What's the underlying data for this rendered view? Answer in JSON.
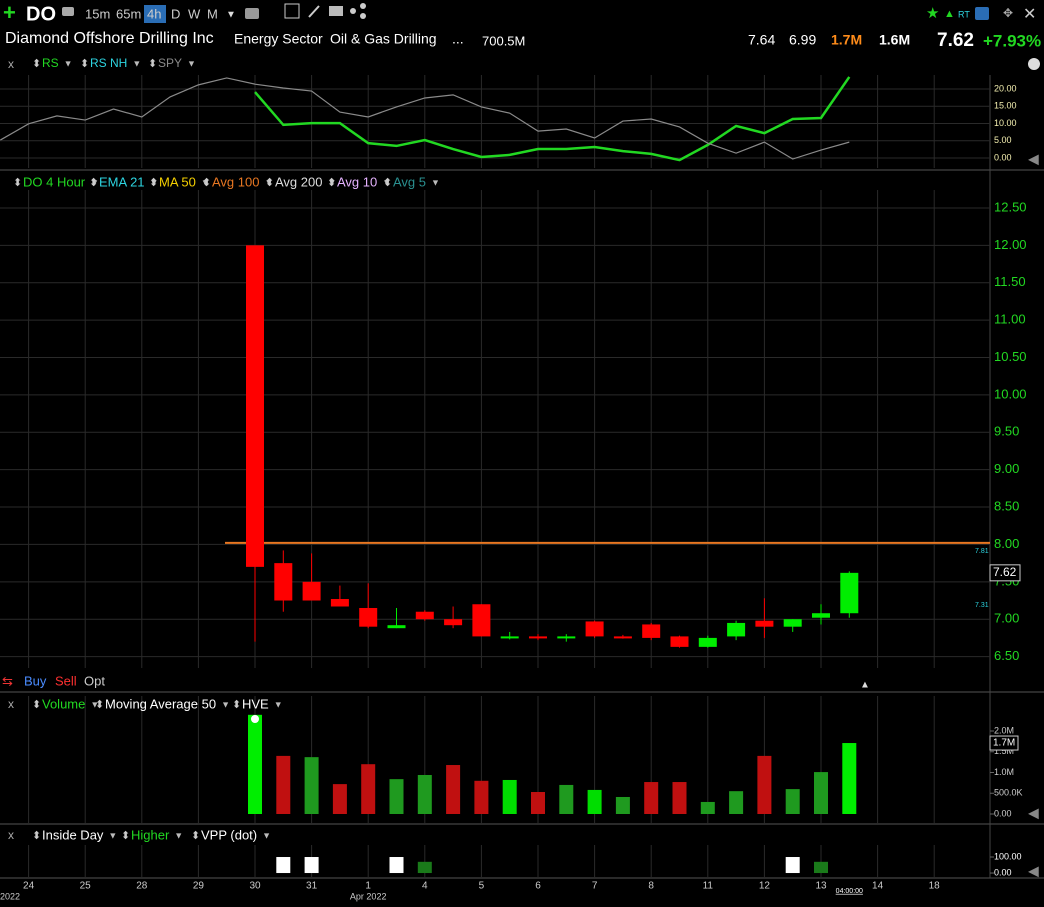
{
  "header": {
    "symbol": "DO",
    "timeframes": [
      "15m",
      "65m",
      "4h",
      "D",
      "W",
      "M"
    ],
    "active_timeframe": "4h",
    "realtime": "RT",
    "company": "Diamond Offshore Drilling Inc",
    "sector": "Energy Sector",
    "industry": "Oil & Gas Drilling",
    "more": "...",
    "market_cap": "700.5M",
    "stats": [
      {
        "text": "7.64",
        "color": "#ffffff"
      },
      {
        "text": "6.99",
        "color": "#ffffff"
      },
      {
        "text": "1.7M",
        "color": "#ff8c1a"
      },
      {
        "text": "1.6M",
        "color": "#ffffff"
      }
    ],
    "last": "7.62",
    "change": "+7.93%"
  },
  "rs_panel": {
    "close": "x",
    "ylim": [
      -2.9,
      24.06
    ],
    "yticks": [
      {
        "value": 20,
        "label": "20.00"
      },
      {
        "value": 15,
        "label": "15.00"
      },
      {
        "value": 10,
        "label": "10.00"
      },
      {
        "value": 5,
        "label": "5.00"
      },
      {
        "value": 0,
        "label": "0.00"
      }
    ],
    "series": [
      {
        "name": "RS",
        "color": "#22d822",
        "values": [
          null,
          null,
          null,
          null,
          null,
          null,
          null,
          null,
          null,
          19.1,
          9.6,
          10.1,
          10.1,
          4.3,
          3.5,
          5.2,
          2.6,
          0.3,
          0.9,
          2.6,
          2.6,
          3.2,
          2.0,
          1.2,
          -0.6,
          3.8,
          9.3,
          7.2,
          11.3,
          11.6,
          23.5
        ]
      },
      {
        "name": "RS NH",
        "color": "#2dd4e0"
      },
      {
        "name": "SPY",
        "color": "#8a8a8a",
        "values": [
          5.2,
          9.9,
          12.2,
          11.0,
          14.2,
          11.9,
          17.7,
          21.2,
          23.2,
          21.4,
          20.3,
          19.4,
          13.3,
          11.9,
          14.8,
          17.4,
          18.3,
          14.8,
          13.0,
          7.8,
          8.4,
          5.8,
          10.7,
          11.3,
          9.0,
          4.3,
          1.4,
          4.6,
          -0.3,
          2.3,
          4.6
        ]
      }
    ]
  },
  "price_panel": {
    "legend": [
      {
        "text": "DO 4 Hour",
        "color": "#22d822"
      },
      {
        "text": "EMA 21",
        "color": "#2dd4e0"
      },
      {
        "text": "MA 50",
        "color": "#f5d000"
      },
      {
        "text": "Avg 100",
        "color": "#e87722"
      },
      {
        "text": "Avg 200",
        "color": "#dddddd"
      },
      {
        "text": "Avg 10",
        "color": "#e6b3ff"
      },
      {
        "text": "Avg 5",
        "color": "#2a9090"
      }
    ],
    "ylim": [
      6.08,
      12.74
    ],
    "yticks": [
      {
        "value": 12.5,
        "label": "12.50"
      },
      {
        "value": 12,
        "label": "12.00"
      },
      {
        "value": 11.5,
        "label": "11.50"
      },
      {
        "value": 11,
        "label": "11.00"
      },
      {
        "value": 10.5,
        "label": "10.50"
      },
      {
        "value": 10,
        "label": "10.00"
      },
      {
        "value": 9.5,
        "label": "9.50"
      },
      {
        "value": 9,
        "label": "9.00"
      },
      {
        "value": 8.5,
        "label": "8.50"
      },
      {
        "value": 8,
        "label": "8.00"
      },
      {
        "value": 7.5,
        "label": "7.50"
      },
      {
        "value": 7,
        "label": "7.00"
      },
      {
        "value": 6.5,
        "label": "6.50"
      }
    ],
    "up_color": "#00ee00",
    "down_color": "#ff0000",
    "candles": [
      {
        "open": 12.0,
        "high": 12.0,
        "low": 6.7,
        "close": 7.7
      },
      {
        "open": 7.75,
        "high": 7.92,
        "low": 7.1,
        "close": 7.25
      },
      {
        "open": 7.5,
        "high": 7.88,
        "low": 7.25,
        "close": 7.25
      },
      {
        "open": 7.27,
        "high": 7.45,
        "low": 7.17,
        "close": 7.17
      },
      {
        "open": 7.15,
        "high": 7.48,
        "low": 6.88,
        "close": 6.9
      },
      {
        "open": 6.88,
        "high": 7.15,
        "low": 6.88,
        "close": 6.92
      },
      {
        "open": 7.1,
        "high": 7.12,
        "low": 6.98,
        "close": 7.0
      },
      {
        "open": 7.0,
        "high": 7.17,
        "low": 6.88,
        "close": 6.92
      },
      {
        "open": 7.2,
        "high": 7.2,
        "low": 6.77,
        "close": 6.77
      },
      {
        "open": 6.75,
        "high": 6.83,
        "low": 6.73,
        "close": 6.77
      },
      {
        "open": 6.77,
        "high": 6.8,
        "low": 6.72,
        "close": 6.75
      },
      {
        "open": 6.75,
        "high": 6.8,
        "low": 6.7,
        "close": 6.77
      },
      {
        "open": 6.97,
        "high": 6.98,
        "low": 6.75,
        "close": 6.77
      },
      {
        "open": 6.77,
        "high": 6.79,
        "low": 6.74,
        "close": 6.75
      },
      {
        "open": 6.93,
        "high": 6.95,
        "low": 6.72,
        "close": 6.75
      },
      {
        "open": 6.77,
        "high": 6.78,
        "low": 6.62,
        "close": 6.63
      },
      {
        "open": 6.63,
        "high": 6.78,
        "low": 6.62,
        "close": 6.75
      },
      {
        "open": 6.77,
        "high": 6.98,
        "low": 6.72,
        "close": 6.95
      },
      {
        "open": 6.98,
        "high": 7.28,
        "low": 6.75,
        "close": 6.9
      },
      {
        "open": 6.9,
        "high": 7.0,
        "low": 6.83,
        "close": 7.0
      },
      {
        "open": 7.02,
        "high": 7.2,
        "low": 6.93,
        "close": 7.08
      },
      {
        "open": 7.08,
        "high": 7.64,
        "low": 7.02,
        "close": 7.62
      }
    ],
    "avg_line": 8.02,
    "avg_line_color": "#e87722",
    "side_labels": [
      "7.81",
      "7.31"
    ],
    "orders": [
      "Buy",
      "Sell",
      "Opt"
    ]
  },
  "volume_panel": {
    "close": "x",
    "legend": [
      {
        "text": "Volume",
        "color": "#22d822"
      },
      {
        "text": "Moving Average 50",
        "color": "#ffffff"
      },
      {
        "text": "HVE",
        "color": "#ffffff"
      }
    ],
    "ylim": [
      0,
      2400000
    ],
    "yticks": [
      {
        "value": 2000000,
        "label": "2.0M"
      },
      {
        "value": 1500000,
        "label": "1.5M"
      },
      {
        "value": 1000000,
        "label": "1.0M"
      },
      {
        "value": 500000,
        "label": "500.0K"
      },
      {
        "value": 0,
        "label": "0.00"
      }
    ],
    "current": {
      "value": 1710000,
      "label": "1.7M"
    },
    "values": [
      2390000,
      1400000,
      1370000,
      720000,
      1200000,
      840000,
      940000,
      1180000,
      800000,
      820000,
      530000,
      700000,
      580000,
      410000,
      770000,
      770000,
      290000,
      550000,
      1400000,
      600000,
      1010000,
      1710000
    ],
    "colors": [
      "#00ee00",
      "#c01010",
      "#1f9a1f",
      "#c01010",
      "#c01010",
      "#1f9a1f",
      "#1f9a1f",
      "#c01010",
      "#c01010",
      "#00dd00",
      "#c01010",
      "#1f9a1f",
      "#00dd00",
      "#1f9a1f",
      "#c01010",
      "#c01010",
      "#1f9a1f",
      "#1f9a1f",
      "#c01010",
      "#1f9a1f",
      "#1f9a1f",
      "#00ee00"
    ]
  },
  "signal_panel": {
    "close": "x",
    "legend": [
      {
        "text": "Inside Day",
        "color": "#ffffff"
      },
      {
        "text": "Higher",
        "color": "#22d822"
      },
      {
        "text": "VPP (dot)",
        "color": "#ffffff"
      }
    ],
    "ylim": [
      -56,
      175
    ],
    "yticks": [
      {
        "value": 100,
        "label": "100.00"
      },
      {
        "value": 0,
        "label": "0.00"
      }
    ],
    "signals": [
      {
        "bar": 1,
        "value": 100,
        "color": "#ffffff"
      },
      {
        "bar": 2,
        "value": 100,
        "color": "#ffffff"
      },
      {
        "bar": 5,
        "value": 100,
        "color": "#ffffff"
      },
      {
        "bar": 6,
        "value": 70,
        "color": "#1a7a1a"
      },
      {
        "bar": 19,
        "value": 100,
        "color": "#ffffff"
      },
      {
        "bar": 20,
        "value": 70,
        "color": "#1a7a1a"
      }
    ]
  },
  "x_axis": {
    "labels": [
      "24",
      "25",
      "28",
      "29",
      "30",
      "31",
      "1",
      "4",
      "5",
      "6",
      "7",
      "8",
      "11",
      "12",
      "13",
      "14",
      "18"
    ],
    "months": [
      "2022",
      "Apr 2022"
    ],
    "cursor_time": "04:00:00"
  }
}
